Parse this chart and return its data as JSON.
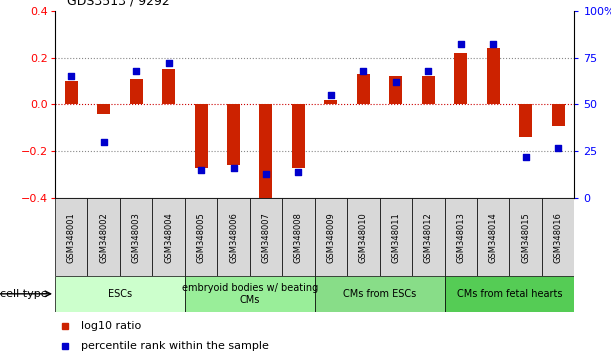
{
  "title": "GDS3513 / 9292",
  "samples": [
    "GSM348001",
    "GSM348002",
    "GSM348003",
    "GSM348004",
    "GSM348005",
    "GSM348006",
    "GSM348007",
    "GSM348008",
    "GSM348009",
    "GSM348010",
    "GSM348011",
    "GSM348012",
    "GSM348013",
    "GSM348014",
    "GSM348015",
    "GSM348016"
  ],
  "log10_ratio": [
    0.1,
    -0.04,
    0.11,
    0.15,
    -0.27,
    -0.26,
    -0.4,
    -0.27,
    0.02,
    0.13,
    0.12,
    0.12,
    0.22,
    0.24,
    -0.14,
    -0.09
  ],
  "percentile_rank": [
    65,
    30,
    68,
    72,
    15,
    16,
    13,
    14,
    55,
    68,
    62,
    68,
    82,
    82,
    22,
    27
  ],
  "ylim_left": [
    -0.4,
    0.4
  ],
  "ylim_right": [
    0,
    100
  ],
  "yticks_left": [
    -0.4,
    -0.2,
    0.0,
    0.2,
    0.4
  ],
  "yticks_right": [
    0,
    25,
    50,
    75,
    100
  ],
  "bar_color": "#cc2200",
  "dot_color": "#0000cc",
  "cell_types": [
    {
      "label": "ESCs",
      "start": 0,
      "end": 3,
      "color": "#ccffcc"
    },
    {
      "label": "embryoid bodies w/ beating\nCMs",
      "start": 4,
      "end": 7,
      "color": "#99ee99"
    },
    {
      "label": "CMs from ESCs",
      "start": 8,
      "end": 11,
      "color": "#88dd88"
    },
    {
      "label": "CMs from fetal hearts",
      "start": 12,
      "end": 15,
      "color": "#55cc55"
    }
  ],
  "sample_box_color": "#d8d8d8",
  "legend_bar_label": "log10 ratio",
  "legend_dot_label": "percentile rank within the sample",
  "cell_type_label": "cell type",
  "hline0_color": "#cc0000",
  "dotted_color": "#888888",
  "background_color": "#ffffff"
}
